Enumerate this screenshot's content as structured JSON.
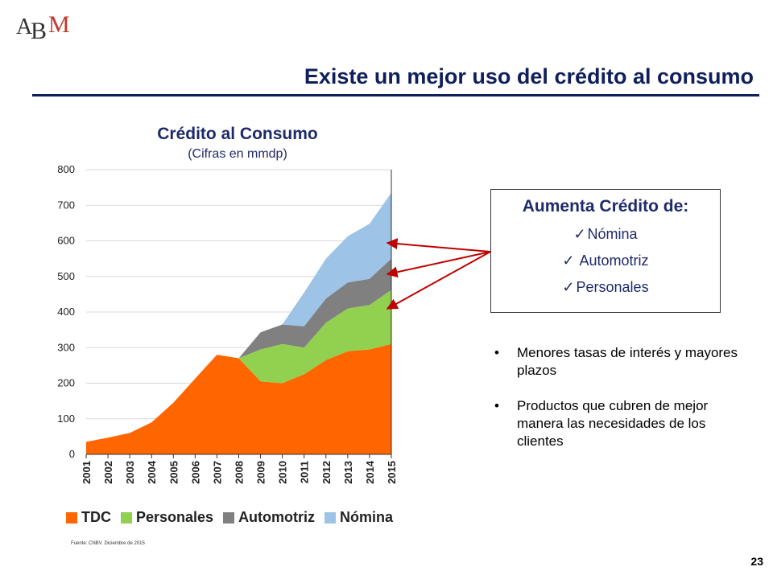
{
  "logo": {
    "text": "ABM"
  },
  "slide": {
    "title": "Existe un mejor uso del crédito al consumo",
    "page_number": "23",
    "source": "Fuente: CNBV. Diciembre de 2015"
  },
  "callout": {
    "title": "Aumenta Crédito de:",
    "check_glyph": "✓",
    "items": [
      "Nómina",
      " Automotriz",
      "Personales"
    ]
  },
  "bullets": {
    "glyph": "•",
    "items": [
      "Menores tasas de interés y mayores plazos",
      "Productos que cubren de mejor manera las necesidades de los clientes"
    ]
  },
  "chart_data": {
    "type": "area",
    "stacked": true,
    "title": "Crédito al Consumo",
    "subtitle": "(Cifras en mmdp)",
    "x": [
      "2001",
      "2002",
      "2003",
      "2004",
      "2005",
      "2006",
      "2007",
      "2008",
      "2009",
      "2010",
      "2011",
      "2012",
      "2013",
      "2014",
      "2015"
    ],
    "ylim": [
      0,
      800
    ],
    "yticks": [
      0,
      100,
      200,
      300,
      400,
      500,
      600,
      700,
      800
    ],
    "grid": true,
    "legend_position": "bottom",
    "series": [
      {
        "name": "TDC",
        "color": "#ff6600",
        "values": [
          35,
          47,
          60,
          90,
          145,
          213,
          280,
          270,
          205,
          200,
          225,
          265,
          290,
          295,
          310
        ]
      },
      {
        "name": "Personales",
        "color": "#92d050",
        "values": [
          0,
          0,
          0,
          0,
          0,
          0,
          0,
          0,
          90,
          110,
          75,
          105,
          120,
          125,
          152
        ]
      },
      {
        "name": "Automotriz",
        "color": "#808080",
        "values": [
          0,
          0,
          0,
          0,
          0,
          0,
          0,
          0,
          48,
          55,
          60,
          68,
          73,
          73,
          88
        ]
      },
      {
        "name": "Nómina",
        "color": "#9dc3e6",
        "values": [
          0,
          0,
          0,
          0,
          0,
          0,
          0,
          0,
          0,
          0,
          95,
          112,
          130,
          155,
          185
        ]
      }
    ]
  },
  "colors": {
    "title_navy": "#0f1f5c",
    "arrow_red": "#c00000"
  }
}
